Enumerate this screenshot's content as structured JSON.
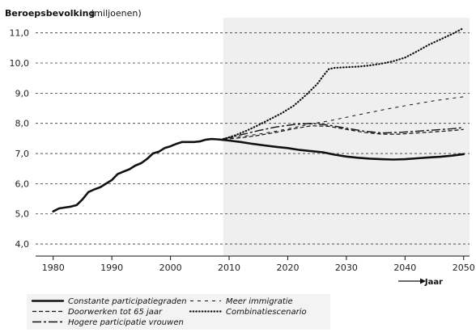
{
  "chart_data": {
    "type": "line",
    "title": "Beroepsbevolking",
    "title_unit": "(miljoenen)",
    "xlabel": "Jaar",
    "ylabel": "",
    "xlim": [
      1977,
      2051
    ],
    "ylim": [
      3.6,
      11.5
    ],
    "xticks": [
      1980,
      1990,
      2000,
      2010,
      2020,
      2030,
      2040,
      2050
    ],
    "yticks": [
      4.0,
      5.0,
      6.0,
      7.0,
      8.0,
      9.0,
      10.0,
      11.0
    ],
    "ytick_labels": [
      "4,0",
      "5,0",
      "6,0",
      "7,0",
      "8,0",
      "9,0",
      "10,0",
      "11,0"
    ],
    "grid": "horizontal dashed",
    "projection_shading_from": 2009,
    "legend_position": "bottom",
    "series": [
      {
        "name": "Constante participatiegraden",
        "style": "solid",
        "x": [
          1980,
          1981,
          1982,
          1983,
          1984,
          1985,
          1986,
          1987,
          1988,
          1989,
          1990,
          1991,
          1992,
          1993,
          1994,
          1995,
          1996,
          1997,
          1998,
          1999,
          2000,
          2001,
          2002,
          2003,
          2004,
          2005,
          2006,
          2007,
          2008,
          2009,
          2010,
          2012,
          2014,
          2016,
          2018,
          2020,
          2022,
          2024,
          2026,
          2028,
          2030,
          2032,
          2034,
          2036,
          2038,
          2040,
          2042,
          2044,
          2046,
          2048,
          2050
        ],
        "y": [
          5.08,
          5.18,
          5.21,
          5.24,
          5.29,
          5.48,
          5.72,
          5.81,
          5.88,
          6.0,
          6.12,
          6.32,
          6.4,
          6.48,
          6.6,
          6.68,
          6.82,
          7.0,
          7.06,
          7.18,
          7.24,
          7.32,
          7.38,
          7.38,
          7.38,
          7.4,
          7.46,
          7.48,
          7.47,
          7.45,
          7.43,
          7.38,
          7.32,
          7.27,
          7.22,
          7.18,
          7.12,
          7.08,
          7.04,
          6.96,
          6.9,
          6.86,
          6.83,
          6.81,
          6.8,
          6.81,
          6.84,
          6.87,
          6.89,
          6.93,
          6.98
        ]
      },
      {
        "name": "Doorwerken tot 65 jaar",
        "style": "dashed",
        "x": [
          2009,
          2012,
          2015,
          2018,
          2021,
          2024,
          2027,
          2030,
          2033,
          2036,
          2039,
          2042,
          2045,
          2048,
          2050
        ],
        "y": [
          7.47,
          7.52,
          7.6,
          7.7,
          7.82,
          7.92,
          7.9,
          7.8,
          7.7,
          7.64,
          7.64,
          7.68,
          7.72,
          7.76,
          7.8
        ]
      },
      {
        "name": "Hogere participatie vrouwen",
        "style": "longdash",
        "x": [
          2009,
          2012,
          2015,
          2018,
          2021,
          2024,
          2027,
          2030,
          2033,
          2036,
          2039,
          2042,
          2045,
          2048,
          2050
        ],
        "y": [
          7.48,
          7.62,
          7.76,
          7.88,
          7.96,
          8.0,
          7.94,
          7.84,
          7.74,
          7.68,
          7.7,
          7.74,
          7.78,
          7.82,
          7.86
        ]
      },
      {
        "name": "Meer immigratie",
        "style": "shortdash",
        "x": [
          2009,
          2012,
          2015,
          2018,
          2021,
          2024,
          2027,
          2030,
          2033,
          2036,
          2039,
          2042,
          2045,
          2048,
          2050
        ],
        "y": [
          7.5,
          7.56,
          7.64,
          7.74,
          7.86,
          7.98,
          8.08,
          8.2,
          8.32,
          8.44,
          8.55,
          8.65,
          8.75,
          8.83,
          8.88
        ]
      },
      {
        "name": "Combinatiescenario",
        "style": "dotted",
        "x": [
          2009,
          2011,
          2013,
          2015,
          2017,
          2019,
          2021,
          2023,
          2025,
          2026,
          2027,
          2028,
          2030,
          2032,
          2034,
          2036,
          2038,
          2040,
          2042,
          2044,
          2046,
          2048,
          2050
        ],
        "y": [
          7.48,
          7.6,
          7.76,
          7.94,
          8.14,
          8.34,
          8.58,
          8.92,
          9.3,
          9.56,
          9.8,
          9.84,
          9.86,
          9.88,
          9.92,
          9.98,
          10.06,
          10.18,
          10.38,
          10.6,
          10.78,
          10.96,
          11.16
        ]
      }
    ]
  }
}
